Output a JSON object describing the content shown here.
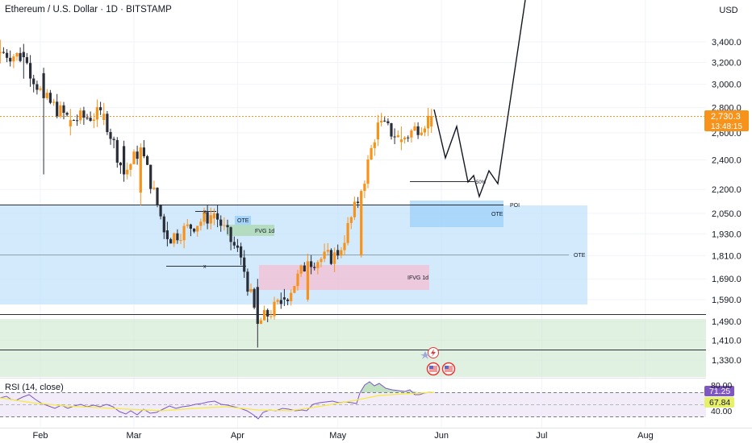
{
  "header": {
    "title": "Ethereum / U.S. Dollar · 1D · BITSTAMP",
    "currency": "USD"
  },
  "price_axis": {
    "ticks": [
      "3,400.0",
      "3,200.0",
      "3,000.0",
      "2,800.0",
      "2,600.0",
      "2,400.0",
      "2,200.0",
      "2,050.0",
      "1,930.0",
      "1,810.0",
      "1,690.0",
      "1,590.0",
      "1,490.0",
      "1,410.0",
      "1,330.0"
    ],
    "last_price": "2,730.3",
    "countdown": "13:48:15"
  },
  "time_axis": {
    "ticks": [
      "Feb",
      "Mar",
      "Apr",
      "May",
      "Jun",
      "Jul",
      "Aug"
    ]
  },
  "annotations": {
    "poi": "POI",
    "ote_upper": "OTE",
    "ote_main": "OTE",
    "ote_small": "OTE",
    "fvg": "FVG 1d",
    "ifvg": "IFVG 1d",
    "fib50": "50%",
    "x_mark_1": "x",
    "x_mark_2": "x"
  },
  "rsi": {
    "label": "RSI (14, close)",
    "value_1": "71.25",
    "value_2": "67.84",
    "ticks": [
      "80.00",
      "40.00"
    ]
  },
  "colors": {
    "bull": "#f7931a",
    "bear": "#2a2e39",
    "last_price_bg": "#f7931a",
    "blue_zone": "#bbdefb",
    "green_zone": "#c8e6c9",
    "pink_zone": "#f8bbd0",
    "rsi_line": "#7e57c2",
    "rsi_ma": "#f5eb3b",
    "rsi_ma_label": "#e6f06a"
  },
  "chart_data": {
    "type": "candlestick",
    "title": "Ethereum / U.S. Dollar · 1D · BITSTAMP",
    "y_axis": {
      "scale": "log",
      "range": [
        1250,
        3700
      ],
      "unit": "USD"
    },
    "x_axis": {
      "range": [
        "2025-01-19",
        "2025-08-19"
      ],
      "ticks": [
        "Feb",
        "Mar",
        "Apr",
        "May",
        "Jun",
        "Jul",
        "Aug"
      ]
    },
    "last_price": 2730.3,
    "candles_sampled": [
      {
        "date": "2025-01-20",
        "open": 3290,
        "high": 3420,
        "low": 3190,
        "close": 3300
      },
      {
        "date": "2025-01-27",
        "open": 3300,
        "high": 3380,
        "low": 3050,
        "close": 3250
      },
      {
        "date": "2025-02-02",
        "open": 3100,
        "high": 3150,
        "low": 2300,
        "close": 2880
      },
      {
        "date": "2025-02-10",
        "open": 2650,
        "high": 2790,
        "low": 2580,
        "close": 2700
      },
      {
        "date": "2025-02-20",
        "open": 2700,
        "high": 2840,
        "low": 2660,
        "close": 2750
      },
      {
        "date": "2025-02-26",
        "open": 2500,
        "high": 2540,
        "low": 2250,
        "close": 2300
      },
      {
        "date": "2025-03-03",
        "open": 2180,
        "high": 2520,
        "low": 2100,
        "close": 2490
      },
      {
        "date": "2025-03-11",
        "open": 1950,
        "high": 2000,
        "low": 1860,
        "close": 1900
      },
      {
        "date": "2025-03-25",
        "open": 2020,
        "high": 2080,
        "low": 1980,
        "close": 2050
      },
      {
        "date": "2025-04-02",
        "open": 1860,
        "high": 1880,
        "low": 1760,
        "close": 1800
      },
      {
        "date": "2025-04-07",
        "open": 1650,
        "high": 1690,
        "low": 1380,
        "close": 1480
      },
      {
        "date": "2025-04-15",
        "open": 1600,
        "high": 1640,
        "low": 1560,
        "close": 1590
      },
      {
        "date": "2025-04-22",
        "open": 1590,
        "high": 1820,
        "low": 1580,
        "close": 1780
      },
      {
        "date": "2025-05-01",
        "open": 1840,
        "high": 1870,
        "low": 1790,
        "close": 1810
      },
      {
        "date": "2025-05-08",
        "open": 1810,
        "high": 2200,
        "low": 1800,
        "close": 2190
      },
      {
        "date": "2025-05-13",
        "open": 2550,
        "high": 2740,
        "low": 2500,
        "close": 2680
      },
      {
        "date": "2025-05-20",
        "open": 2530,
        "high": 2650,
        "low": 2470,
        "close": 2550
      },
      {
        "date": "2025-05-29",
        "open": 2650,
        "high": 2790,
        "low": 2600,
        "close": 2730.3
      }
    ],
    "levels": [
      {
        "label": "POI",
        "value": 2110
      },
      {
        "label": "OTE",
        "value": 1810
      },
      {
        "label": "",
        "value": 1505
      },
      {
        "label": "",
        "value": 1375
      }
    ],
    "projection_path": [
      {
        "date": "2025-05-29",
        "value": 2790
      },
      {
        "date": "2025-06-04",
        "value": 2440
      },
      {
        "date": "2025-06-08",
        "value": 2680
      },
      {
        "date": "2025-06-15",
        "value": 2240
      },
      {
        "date": "2025-06-17",
        "value": 2330
      },
      {
        "date": "2025-06-20",
        "value": 2190
      },
      {
        "date": "2025-06-24",
        "value": 2440
      },
      {
        "date": "2025-06-28",
        "value": 2250
      },
      {
        "date": "2025-07-04",
        "value": 2800
      },
      {
        "date": "2025-07-14",
        "value": 3700
      }
    ],
    "rsi": {
      "period": 14,
      "source": "close",
      "value": 71.25,
      "ma_value": 67.84,
      "levels": [
        80,
        40
      ]
    }
  }
}
